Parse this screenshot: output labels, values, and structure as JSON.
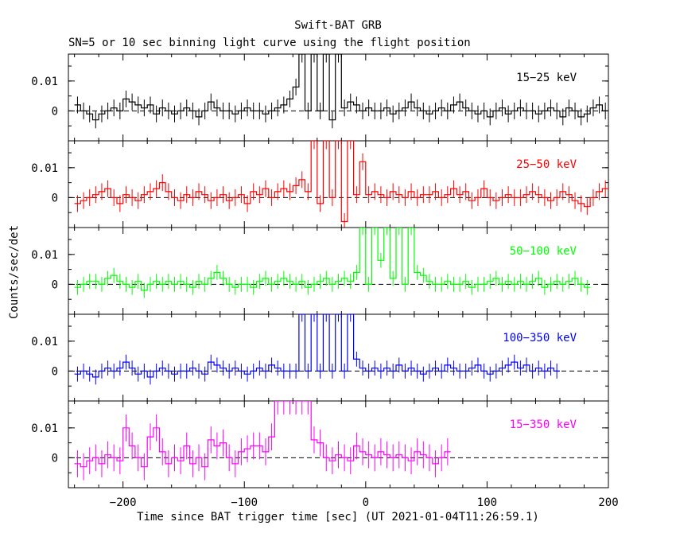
{
  "chart_data": {
    "type": "line",
    "title": "Swift-BAT GRB",
    "subtitle": "SN=5 or 10 sec binning light curve using the flight position",
    "xlabel": "Time since BAT trigger time [sec] (UT 2021-01-04T11:26:59.1)",
    "ylabel": "Counts/sec/det",
    "xlim": [
      -245,
      200
    ],
    "x_ticks": [
      "−200",
      "−100",
      "0",
      "100",
      "200"
    ],
    "x_tick_values": [
      -200,
      -100,
      0,
      100,
      200
    ],
    "y_ticks": [
      "0",
      "0.01"
    ],
    "y_tick_values": [
      0,
      0.01
    ],
    "ylim": [
      -0.01,
      0.019
    ],
    "reference_line": 0,
    "grid": false,
    "legend": "per-panel label, top-right",
    "bin_width": 5,
    "bin_start": -240,
    "series": [
      {
        "name": "15−25 keV",
        "color": "#000000",
        "values": [
          0.002,
          0.0,
          -0.001,
          -0.003,
          -0.001,
          0.0,
          0.001,
          0.0,
          0.004,
          0.003,
          0.002,
          0.001,
          0.002,
          -0.001,
          0.001,
          0.0,
          -0.001,
          0.0,
          0.001,
          0.0,
          -0.002,
          0.0,
          0.003,
          0.001,
          0.0,
          0.0,
          -0.001,
          0.0,
          0.001,
          0.0,
          0.0,
          -0.001,
          0.0,
          0.001,
          0.002,
          0.004,
          0.008,
          0.019,
          0.0,
          0.019,
          0.0,
          0.019,
          -0.003,
          0.019,
          0.001,
          0.003,
          0.002,
          0.0,
          0.001,
          0.0,
          0.0,
          0.001,
          -0.001,
          0.0,
          0.001,
          0.003,
          0.001,
          0.0,
          -0.001,
          0.0,
          0.001,
          0.0,
          0.002,
          0.003,
          0.001,
          0.0,
          -0.001,
          0.0,
          -0.002,
          0.0,
          0.001,
          -0.001,
          0.0,
          0.001,
          0.0,
          0.0,
          -0.001,
          0.0,
          0.001,
          0.0,
          -0.002,
          0.001,
          0.0,
          -0.002,
          -0.001,
          0.001,
          0.002,
          0.0
        ],
        "error": 0.0028
      },
      {
        "name": "25−50 keV",
        "color": "#ff0000",
        "values": [
          -0.002,
          -0.001,
          0.0,
          0.001,
          0.002,
          0.003,
          0.0,
          -0.002,
          0.001,
          0.0,
          -0.001,
          0.001,
          0.002,
          0.003,
          0.005,
          0.002,
          0.0,
          -0.001,
          0.001,
          0.0,
          0.002,
          0.001,
          -0.001,
          0.0,
          0.001,
          -0.001,
          0.0,
          0.001,
          -0.002,
          0.002,
          0.001,
          0.003,
          0.0,
          0.002,
          0.003,
          0.002,
          0.004,
          0.006,
          0.002,
          0.019,
          -0.002,
          0.019,
          0.0,
          0.019,
          -0.008,
          0.019,
          0.001,
          0.012,
          0.001,
          0.002,
          0.001,
          0.0,
          0.002,
          0.001,
          0.0,
          0.002,
          0.0,
          0.001,
          0.001,
          0.002,
          0.0,
          0.001,
          0.003,
          0.001,
          0.002,
          -0.001,
          0.0,
          0.003,
          0.0,
          -0.001,
          0.0,
          0.001,
          0.0,
          0.0,
          0.001,
          0.002,
          0.001,
          0.0,
          -0.001,
          0.0,
          0.002,
          0.001,
          -0.001,
          -0.002,
          -0.003,
          0.0,
          0.002,
          0.003
        ],
        "error": 0.0028
      },
      {
        "name": "50−100 keV",
        "color": "#00ff00",
        "values": [
          -0.001,
          0.0,
          0.001,
          0.001,
          0.0,
          0.002,
          0.003,
          0.001,
          0.0,
          -0.001,
          0.001,
          -0.002,
          0.0,
          0.001,
          0.0,
          0.001,
          0.0,
          0.001,
          0.0,
          -0.001,
          0.001,
          0.0,
          0.002,
          0.004,
          0.002,
          0.0,
          -0.001,
          0.0,
          0.0,
          -0.001,
          0.001,
          0.002,
          0.0,
          0.001,
          0.002,
          0.001,
          0.0,
          0.001,
          -0.001,
          0.0,
          0.001,
          0.002,
          0.0,
          0.001,
          0.002,
          0.001,
          0.004,
          0.019,
          0.0,
          0.019,
          0.008,
          0.019,
          0.002,
          0.019,
          0.0,
          0.019,
          0.004,
          0.003,
          0.001,
          0.0,
          0.0,
          0.001,
          0.0,
          0.0,
          0.001,
          -0.001,
          0.0,
          0.0,
          0.001,
          0.002,
          0.0,
          0.001,
          0.0,
          0.001,
          0.0,
          0.001,
          0.002,
          -0.001,
          0.0,
          0.001,
          0.0,
          0.001,
          0.002,
          0.0,
          -0.001
        ],
        "error": 0.0025
      },
      {
        "name": "100−350 keV",
        "color": "#0000ff",
        "values": [
          -0.001,
          0.0,
          -0.001,
          -0.002,
          0.0,
          0.001,
          0.0,
          0.001,
          0.003,
          0.001,
          -0.001,
          0.0,
          -0.002,
          0.0,
          0.001,
          0.0,
          -0.001,
          0.0,
          0.0,
          0.001,
          0.0,
          -0.001,
          0.003,
          0.002,
          0.001,
          0.0,
          0.001,
          0.0,
          -0.001,
          0.0,
          0.001,
          0.0,
          0.002,
          0.001,
          0.0,
          0.0,
          0.0,
          0.019,
          0.0,
          0.019,
          0.0,
          0.019,
          0.0,
          0.019,
          0.0,
          0.019,
          0.004,
          0.001,
          0.0,
          0.001,
          0.0,
          0.001,
          0.0,
          0.002,
          0.0,
          0.001,
          0.0,
          -0.001,
          0.0,
          0.001,
          0.0,
          0.002,
          0.001,
          0.0,
          0.0,
          0.001,
          0.002,
          0.0,
          -0.001,
          0.0,
          0.001,
          0.002,
          0.003,
          0.001,
          0.002,
          0.0,
          0.001,
          0.0,
          0.001,
          0.0
        ],
        "error": 0.0025
      },
      {
        "name": "15−350 keV",
        "color": "#ff00ff",
        "values": [
          -0.002,
          -0.003,
          -0.001,
          0.0,
          -0.002,
          0.001,
          0.0,
          -0.001,
          0.01,
          0.004,
          0.0,
          -0.003,
          0.007,
          0.01,
          0.002,
          -0.002,
          0.0,
          -0.001,
          0.004,
          -0.002,
          0.0,
          -0.003,
          0.006,
          0.004,
          0.005,
          0.0,
          -0.002,
          0.002,
          0.003,
          0.004,
          0.004,
          0.002,
          0.007,
          0.019,
          0.019,
          0.019,
          0.019,
          0.019,
          0.019,
          0.006,
          0.005,
          0.0,
          -0.001,
          0.001,
          0.0,
          -0.001,
          0.004,
          0.002,
          0.001,
          0.0,
          0.002,
          0.001,
          0.0,
          0.001,
          0.0,
          -0.001,
          0.002,
          0.001,
          0.0,
          -0.002,
          0.0,
          0.002
        ],
        "error": 0.0045
      }
    ]
  }
}
